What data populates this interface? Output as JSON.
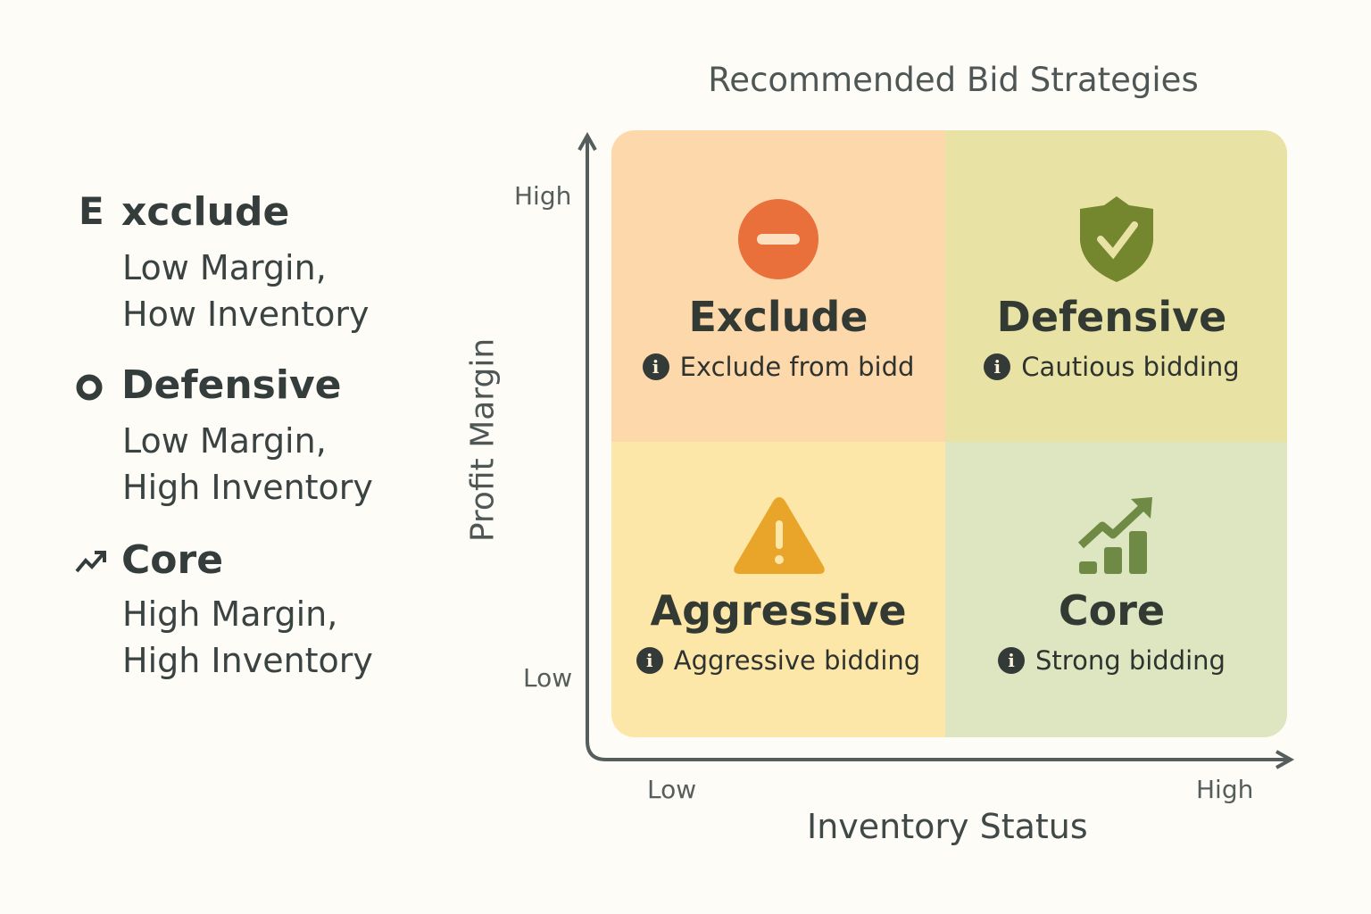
{
  "title": "Recommended Bid Strategies",
  "legend": [
    {
      "icon_char": "E",
      "icon": "letter-e-icon",
      "title": "xcclude",
      "line1": "Low Margin,",
      "line2": "How Inventory"
    },
    {
      "icon": "ring-icon",
      "title": "Defensive",
      "line1": "Low Margin,",
      "line2": "High Inventory"
    },
    {
      "icon": "trending-up-icon",
      "title": "Core",
      "line1": "High Margin,",
      "line2": "High Inventory"
    }
  ],
  "y_axis": {
    "label": "Profit Margin",
    "high": "High",
    "low": "Low"
  },
  "x_axis": {
    "label": "Inventory Status",
    "low": "Low",
    "high": "High"
  },
  "quadrants": {
    "exclude": {
      "name": "Exclude",
      "desc": "Exclude from bidd",
      "icon": "minus-circle-icon",
      "color": "#fdd8aa"
    },
    "defensive": {
      "name": "Defensive",
      "desc": "Cautious bidding",
      "icon": "shield-check-icon",
      "color": "#e8e3a4"
    },
    "aggressive": {
      "name": "Aggressive",
      "desc": "Aggressive bidding",
      "icon": "warning-icon",
      "color": "#fde7a8"
    },
    "core": {
      "name": "Core",
      "desc": "Strong bidding",
      "icon": "growth-chart-icon",
      "color": "#dde6c0"
    }
  },
  "info_glyph": "i"
}
